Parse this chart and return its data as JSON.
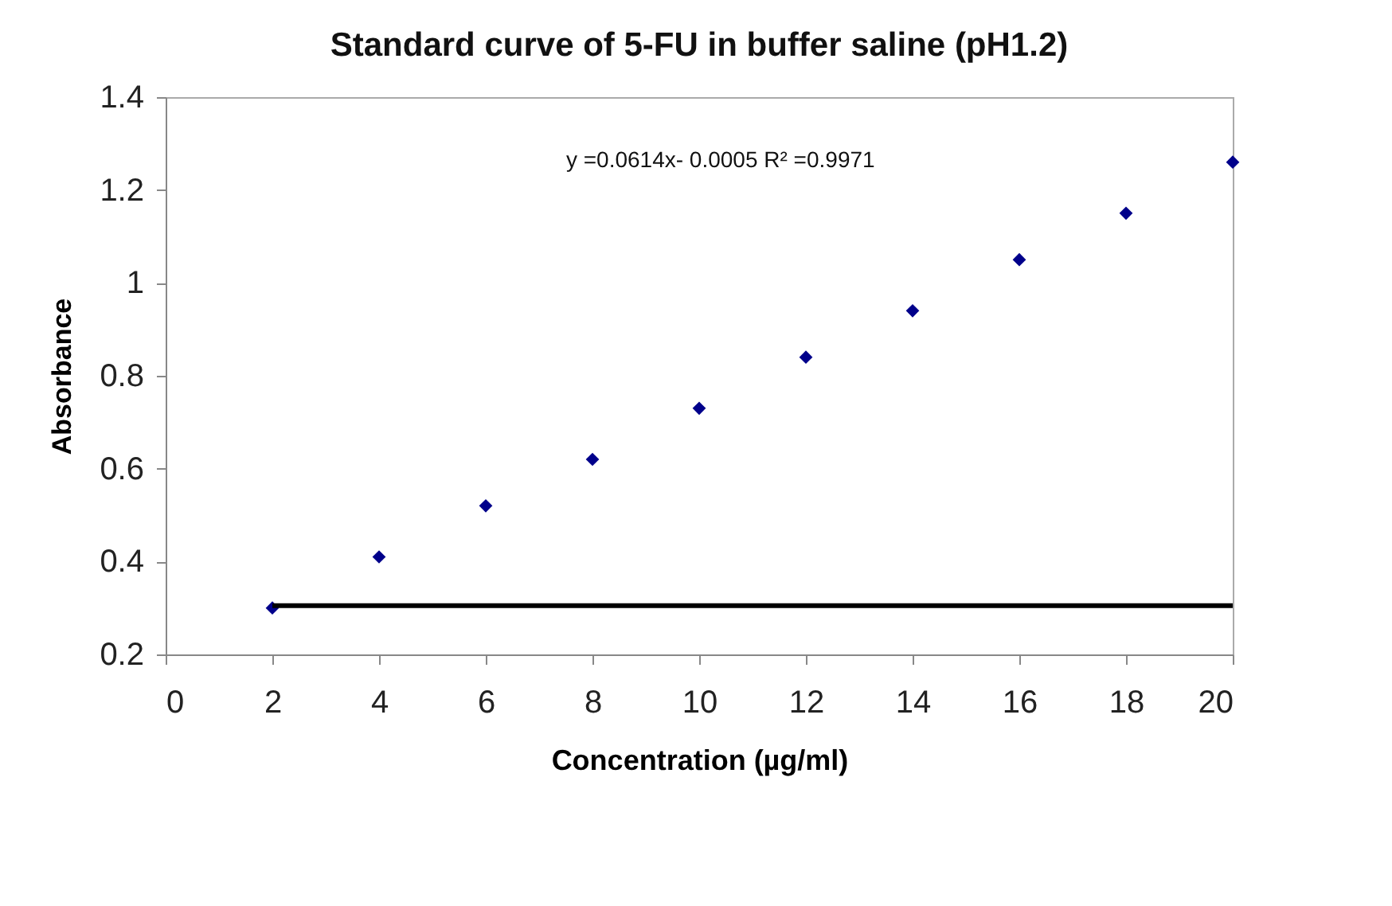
{
  "chart_data": {
    "type": "scatter",
    "title": "Standard  curve of 5-FU in buffer saline (pH1.2)",
    "xlabel": "Concentration (µg/ml)",
    "ylabel": "Absorbance",
    "x": [
      2,
      4,
      6,
      8,
      10,
      12,
      14,
      16,
      18,
      20
    ],
    "series": [
      {
        "marker": "diamond",
        "color": "#00008b",
        "values": [
          0.3,
          0.41,
          0.52,
          0.62,
          0.73,
          0.84,
          0.94,
          1.05,
          1.15,
          1.26
        ]
      },
      {
        "type": "line",
        "color": "#000000",
        "x": [
          2,
          20
        ],
        "values": [
          0.305,
          0.305
        ]
      }
    ],
    "xlim": [
      0,
      20
    ],
    "xticks": [
      0,
      2,
      4,
      6,
      8,
      10,
      12,
      14,
      16,
      18,
      20
    ],
    "ylim": [
      0.2,
      1.4
    ],
    "yticks": [
      0.2,
      0.4,
      0.6,
      0.8,
      1,
      1.2,
      1.4
    ],
    "grid": false,
    "line_style": "solid",
    "annotations": [
      "y =0.0614x- 0.0005 R² =0.9971"
    ]
  }
}
